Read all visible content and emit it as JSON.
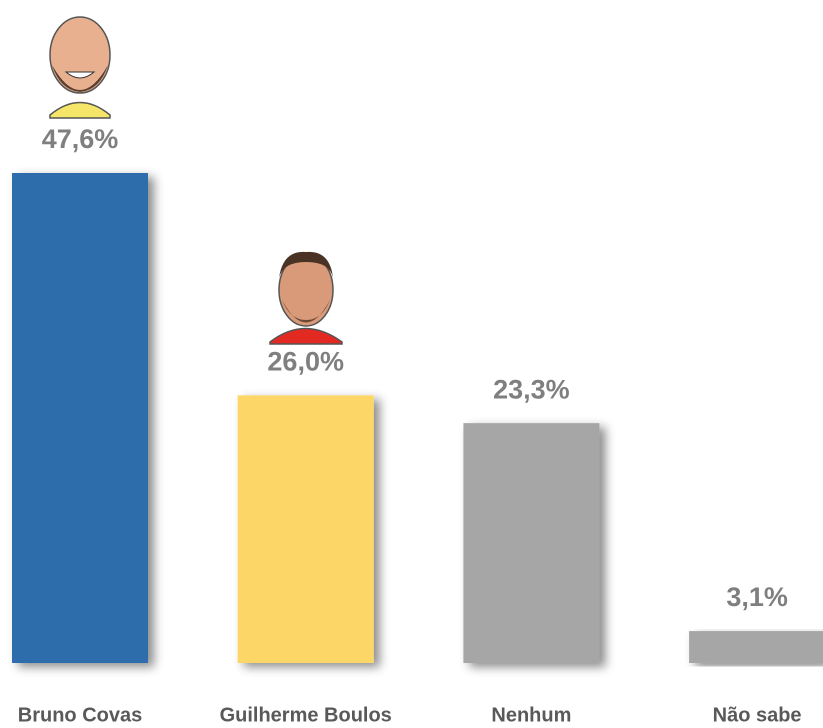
{
  "chart_data": {
    "type": "bar",
    "categories": [
      "Bruno Covas",
      "Guilherme Boulos",
      "Nenhum",
      "Não sabe"
    ],
    "values": [
      47.6,
      26.0,
      23.3,
      3.1
    ],
    "value_labels": [
      "47,6%",
      "26,0%",
      "23,3%",
      "3,1%"
    ],
    "colors": [
      "#2e6dab",
      "#fdd668",
      "#a6a6a6",
      "#a6a6a6"
    ]
  }
}
